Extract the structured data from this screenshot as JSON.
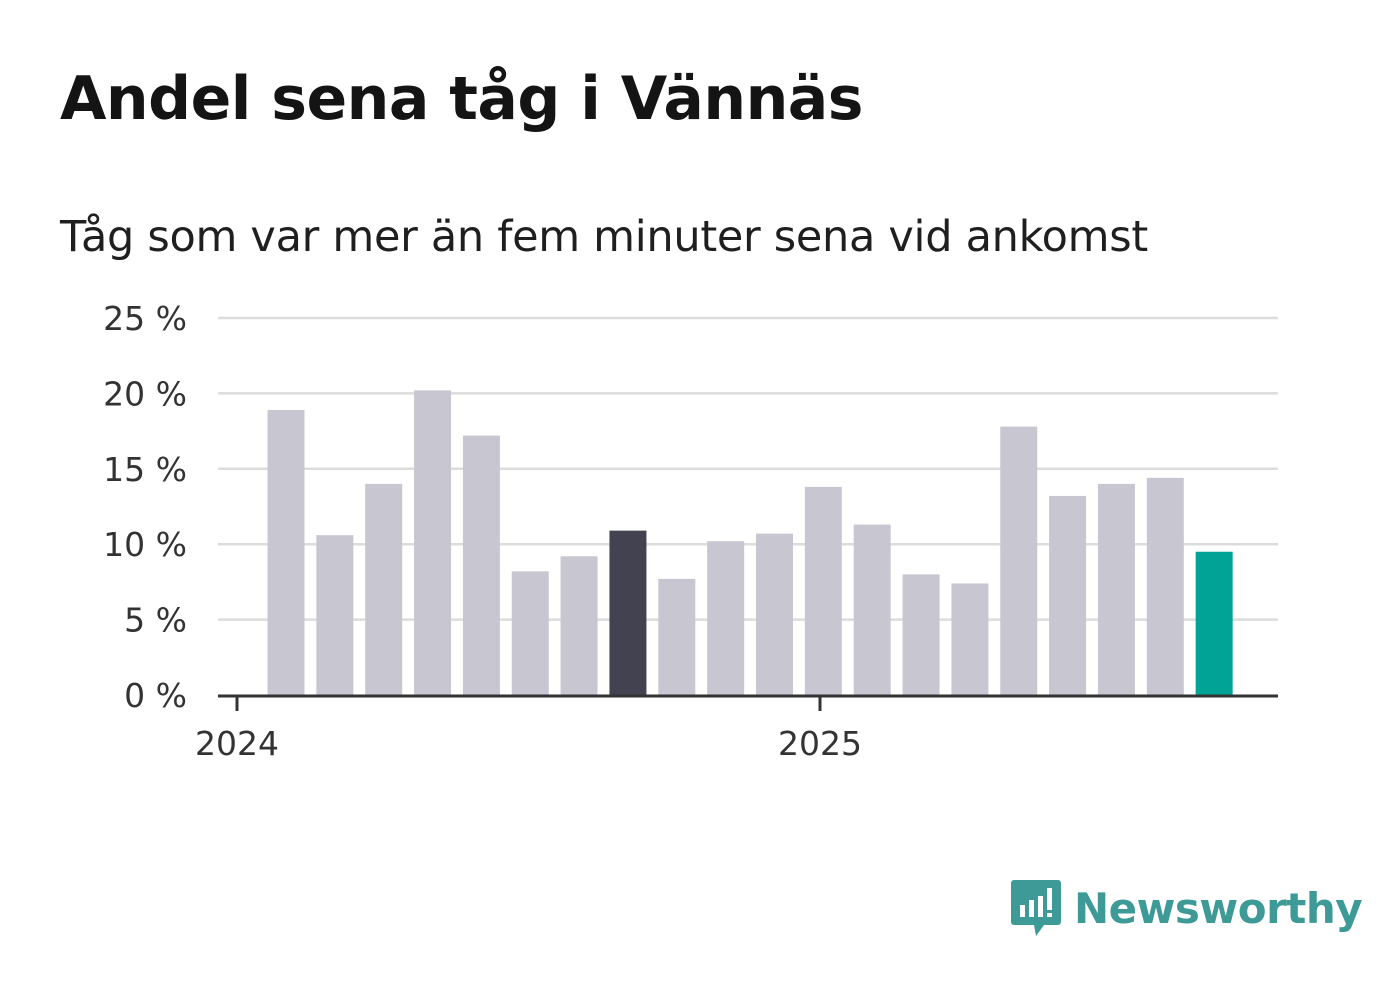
{
  "chart_data": {
    "type": "bar",
    "title": "Andel sena tåg i Vännäs",
    "subtitle": "Tåg som var mer än fem minuter sena vid ankomst",
    "x_labels": [
      "2024",
      "2025"
    ],
    "y_ticks": [
      "0 %",
      "5 %",
      "10 %",
      "15 %",
      "20 %",
      "25 %"
    ],
    "ylim": [
      0,
      25
    ],
    "grid": true,
    "values": [
      18.9,
      10.6,
      14.0,
      20.2,
      17.2,
      8.2,
      9.2,
      10.9,
      7.7,
      10.2,
      10.7,
      13.8,
      11.3,
      8.0,
      7.4,
      17.8,
      13.2,
      14.0,
      14.4,
      9.5
    ],
    "colors": {
      "default": "#c8c7d1",
      "highlight_dark": "#434250",
      "highlight_accent": "#00a396",
      "grid": "#dcdcdc",
      "axis": "#333333"
    },
    "highlight_dark_index": 7,
    "highlight_accent_index": 19
  },
  "brand": {
    "name": "Newsworthy",
    "icon": "newsworthy-logo-icon"
  }
}
